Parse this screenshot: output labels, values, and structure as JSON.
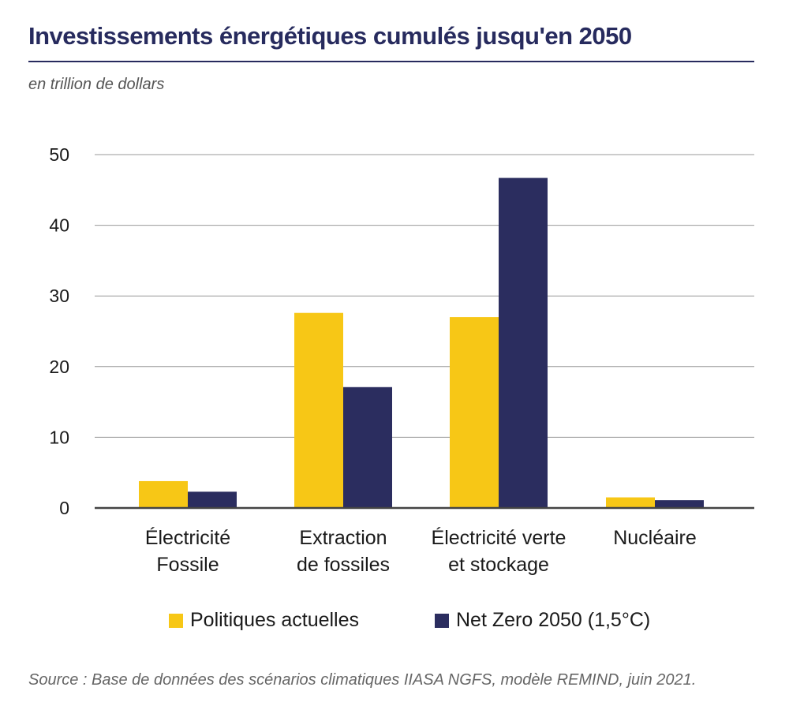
{
  "header": {
    "title": "Investissements énergétiques cumulés jusqu'en 2050",
    "subtitle": "en trillion de dollars"
  },
  "colors": {
    "title": "#272b5e",
    "series_current": "#f7c716",
    "series_netzero": "#2b2d5f",
    "grid": "#9a9a9a",
    "axis": "#444444"
  },
  "chart_data": {
    "type": "bar",
    "categories": [
      [
        "Électricité",
        "Fossile"
      ],
      [
        "Extraction",
        "de fossiles"
      ],
      [
        "Électricité verte",
        "et stockage"
      ],
      [
        "Nucléaire"
      ]
    ],
    "series": [
      {
        "name": "Politiques actuelles",
        "values": [
          3.8,
          27.6,
          27.0,
          1.5
        ]
      },
      {
        "name": "Net Zero 2050 (1,5°C)",
        "values": [
          2.3,
          17.1,
          46.7,
          1.1
        ]
      }
    ],
    "ylim": [
      0,
      50
    ],
    "yticks": [
      0,
      10,
      20,
      30,
      40,
      50
    ],
    "ytick_labels": [
      "0",
      "10",
      "20",
      "30",
      "40",
      "50"
    ],
    "grid": true,
    "legend_position": "bottom",
    "xlabel": "",
    "ylabel": ""
  },
  "legend": {
    "items": [
      {
        "label": "Politiques actuelles"
      },
      {
        "label": "Net Zero 2050 (1,5°C)"
      }
    ]
  },
  "footer": {
    "source": "Source : Base de données des scénarios climatiques IIASA NGFS, modèle REMIND, juin 2021."
  }
}
